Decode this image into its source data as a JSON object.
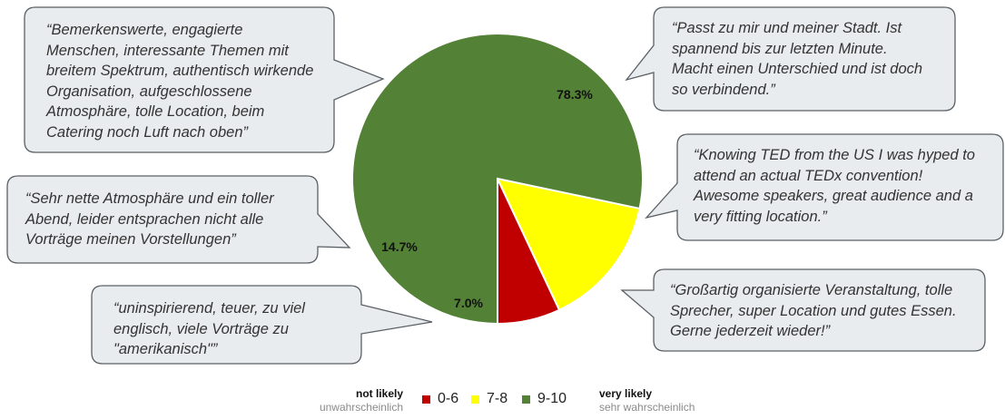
{
  "chart_data": {
    "type": "pie",
    "slices": [
      {
        "label": "0-6",
        "value": 7.0,
        "value_label": "7.0%",
        "color": "#c00000"
      },
      {
        "label": "7-8",
        "value": 14.7,
        "value_label": "14.7%",
        "color": "#ffff00"
      },
      {
        "label": "9-10",
        "value": 78.3,
        "value_label": "78.3%",
        "color": "#538135"
      }
    ],
    "legend": {
      "placement": "bottom",
      "left_label": "not likely",
      "left_sublabel": "unwahrscheinlich",
      "right_label": "very likely",
      "right_sublabel": "sehr wahrscheinlich"
    },
    "annotations": [
      {
        "id": "q1",
        "lines": [
          "“Bemerkenswerte, engagierte",
          "Menschen, interessante Themen mit",
          "breitem Spektrum, authentisch wirkende",
          "Organisation, aufgeschlossene",
          "Atmosphäre, tolle Location, beim",
          "Catering noch Luft nach oben”"
        ]
      },
      {
        "id": "q2",
        "lines": [
          "“Sehr nette Atmosphäre und ein toller",
          "Abend, leider entsprachen nicht alle",
          "Vorträge meinen Vorstellungen”"
        ]
      },
      {
        "id": "q3",
        "lines": [
          "“uninspirierend, teuer, zu viel",
          "englisch, viele Vorträge zu",
          "\"amerikanisch\"”"
        ]
      },
      {
        "id": "q4",
        "lines": [
          "“Passt zu mir und meiner Stadt. Ist",
          "spannend bis zur letzten Minute.",
          "Macht einen Unterschied und ist doch",
          "so verbindend.”"
        ]
      },
      {
        "id": "q5",
        "lines": [
          "“Knowing TED from the US I was hyped to",
          "attend an actual TEDx convention!",
          "Awesome speakers, great audience and a",
          "very fitting location.”"
        ]
      },
      {
        "id": "q6",
        "lines": [
          "“Großartig organisierte Veranstaltung, tolle",
          "Sprecher, super Location und gutes Essen.",
          "Gerne jederzeit wieder!”"
        ]
      }
    ]
  }
}
